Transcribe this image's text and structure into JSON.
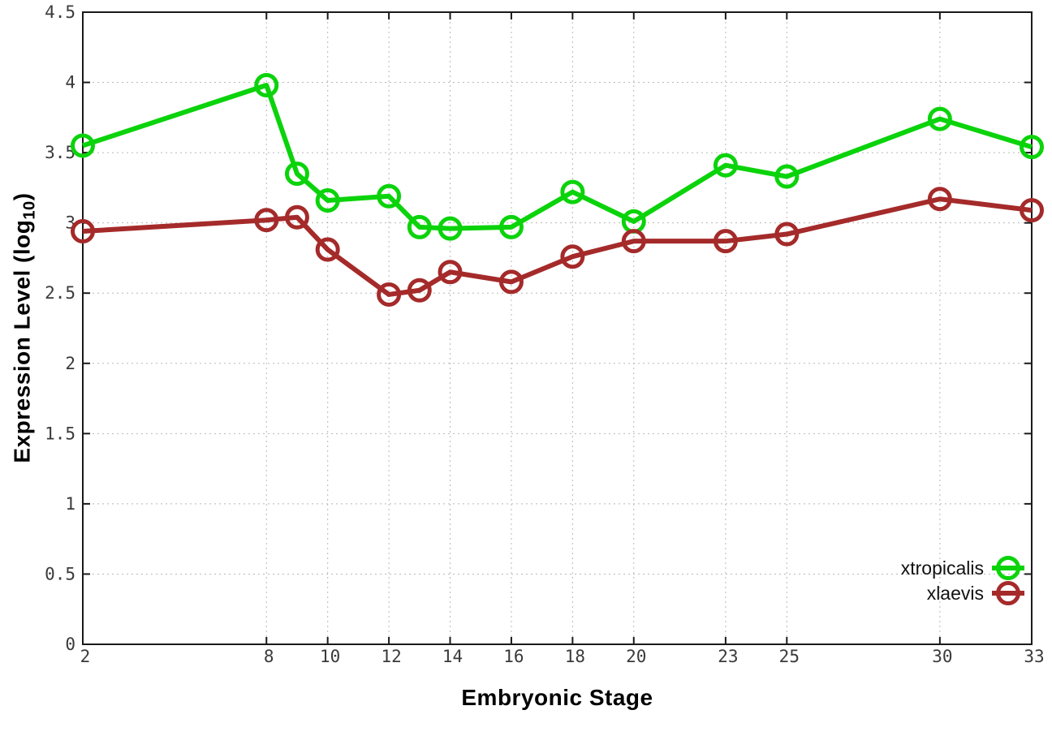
{
  "figure": {
    "xlabel": "Embryonic Stage",
    "ylabel_prefix": "Expression Level (log",
    "ylabel_sub": "10",
    "ylabel_suffix": ")",
    "background_color": "#ffffff",
    "border_color": "#1a1a1a",
    "grid_color": "#b8b8b8",
    "tick_label_color": "#3a3a3a"
  },
  "chart_data": {
    "type": "line",
    "title": "",
    "xlabel": "Embryonic Stage",
    "ylabel": "Expression Level (log10)",
    "x": [
      2,
      8,
      9,
      10,
      12,
      13,
      14,
      16,
      18,
      20,
      23,
      25,
      30,
      33
    ],
    "series": [
      {
        "name": "xtropicalis",
        "color": "#0bd30b",
        "marker": "open-circle",
        "values": [
          3.55,
          3.98,
          3.35,
          3.16,
          3.19,
          2.97,
          2.96,
          2.97,
          3.22,
          3.01,
          3.41,
          3.33,
          3.74,
          3.54
        ]
      },
      {
        "name": "xlaevis",
        "color": "#a52a2a",
        "marker": "open-circle",
        "values": [
          2.94,
          3.02,
          3.04,
          2.81,
          2.49,
          2.52,
          2.65,
          2.58,
          2.76,
          2.87,
          2.87,
          2.92,
          3.17,
          3.09
        ]
      }
    ],
    "xlim": [
      2,
      33
    ],
    "ylim": [
      0,
      4.5
    ],
    "xticks": [
      2,
      8,
      10,
      12,
      14,
      16,
      18,
      20,
      23,
      25,
      30,
      33
    ],
    "yticks": [
      0,
      0.5,
      1,
      1.5,
      2,
      2.5,
      3,
      3.5,
      4,
      4.5
    ],
    "grid": true,
    "grid_style": "dotted",
    "legend_position": "bottom-right"
  }
}
